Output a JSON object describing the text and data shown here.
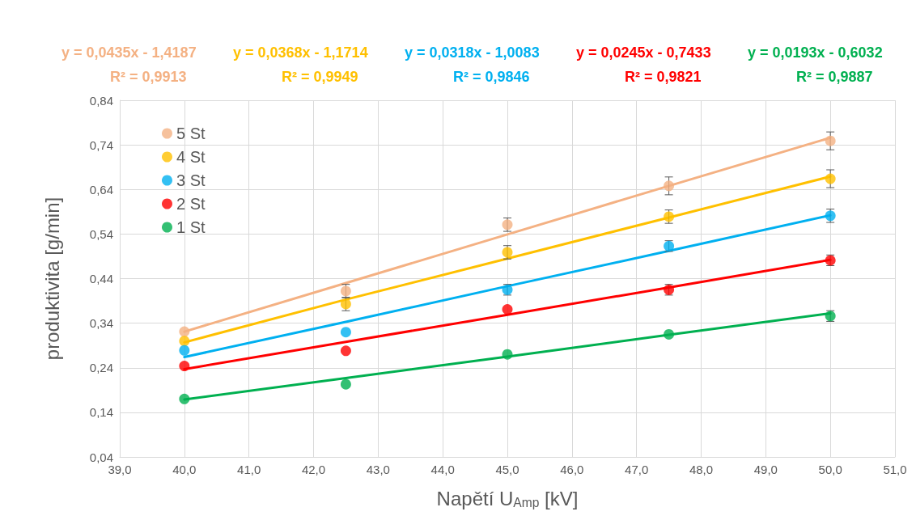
{
  "chart_data": {
    "type": "scatter",
    "xlabel": "Napětí U$_{Amp}$ [kV]",
    "ylabel": "produktivita [g/min]",
    "x": [
      40,
      42.5,
      45,
      47.5,
      50
    ],
    "xlim": [
      39,
      51
    ],
    "xticks": [
      {
        "value": 39,
        "label": "39,0"
      },
      {
        "value": 40,
        "label": "40,0"
      },
      {
        "value": 41,
        "label": "41,0"
      },
      {
        "value": 42,
        "label": "42,0"
      },
      {
        "value": 43,
        "label": "43,0"
      },
      {
        "value": 44,
        "label": "44,0"
      },
      {
        "value": 45,
        "label": "45,0"
      },
      {
        "value": 46,
        "label": "46,0"
      },
      {
        "value": 47,
        "label": "47,0"
      },
      {
        "value": 48,
        "label": "48,0"
      },
      {
        "value": 49,
        "label": "49,0"
      },
      {
        "value": 50,
        "label": "50,0"
      },
      {
        "value": 51,
        "label": "51,0"
      }
    ],
    "ylim": [
      0.04,
      0.84
    ],
    "yticks": [
      {
        "value": 0.04,
        "label": "0,04"
      },
      {
        "value": 0.14,
        "label": "0,14"
      },
      {
        "value": 0.24,
        "label": "0,24"
      },
      {
        "value": 0.34,
        "label": "0,34"
      },
      {
        "value": 0.44,
        "label": "0,44"
      },
      {
        "value": 0.54,
        "label": "0,54"
      },
      {
        "value": 0.64,
        "label": "0,64"
      },
      {
        "value": 0.74,
        "label": "0,74"
      },
      {
        "value": 0.84,
        "label": "0,84"
      }
    ],
    "grid": true,
    "legend": "top left",
    "marker": "circle",
    "series": [
      {
        "name": "5 St",
        "color": "#f4b183",
        "values": [
          0.321,
          0.412,
          0.561,
          0.648,
          0.749
        ],
        "errors": [
          null,
          0.015,
          0.015,
          0.02,
          0.02
        ]
      },
      {
        "name": "4 St",
        "color": "#ffc000",
        "values": [
          0.3,
          0.383,
          0.499,
          0.579,
          0.664
        ],
        "errors": [
          null,
          0.015,
          0.015,
          0.015,
          0.02
        ]
      },
      {
        "name": "3 St",
        "color": "#00b0f0",
        "values": [
          0.279,
          0.32,
          0.415,
          0.513,
          0.581
        ],
        "errors": [
          null,
          null,
          0.012,
          0.012,
          0.015
        ]
      },
      {
        "name": "2 St",
        "color": "#ff0000",
        "values": [
          0.244,
          0.278,
          0.371,
          0.415,
          0.481
        ],
        "errors": [
          null,
          null,
          null,
          0.012,
          0.012
        ]
      },
      {
        "name": "1 St",
        "color": "#00b050",
        "values": [
          0.17,
          0.203,
          0.27,
          0.315,
          0.356
        ],
        "errors": [
          null,
          null,
          null,
          null,
          0.012
        ]
      },
      {
        "type": "line",
        "color": "#f4b183",
        "values": [
          0.321,
          0.43,
          0.539,
          0.648,
          0.756
        ],
        "marker": "none"
      },
      {
        "type": "line",
        "color": "#ffc000",
        "values": [
          0.297,
          0.393,
          0.485,
          0.577,
          0.669
        ],
        "marker": "none"
      },
      {
        "type": "line",
        "color": "#00b0f0",
        "values": [
          0.264,
          0.343,
          0.423,
          0.502,
          0.582
        ],
        "marker": "none"
      },
      {
        "type": "line",
        "color": "#ff0000",
        "values": [
          0.237,
          0.298,
          0.359,
          0.42,
          0.482
        ],
        "marker": "none"
      },
      {
        "type": "line",
        "color": "#00b050",
        "values": [
          0.169,
          0.217,
          0.265,
          0.314,
          0.362
        ],
        "marker": "none"
      }
    ],
    "annotations": [
      "y = 0,0435x - 1,4187",
      "R² = 0,9913",
      "y = 0,0368x - 1,1714",
      "R² = 0,9949",
      "y = 0,0318x - 1,0083",
      "R² = 0,9846",
      "y = 0,0245x - 0,7433",
      "R² = 0,9821",
      "y = 0,0193x - 0,6032",
      "R² = 0,9887"
    ]
  }
}
